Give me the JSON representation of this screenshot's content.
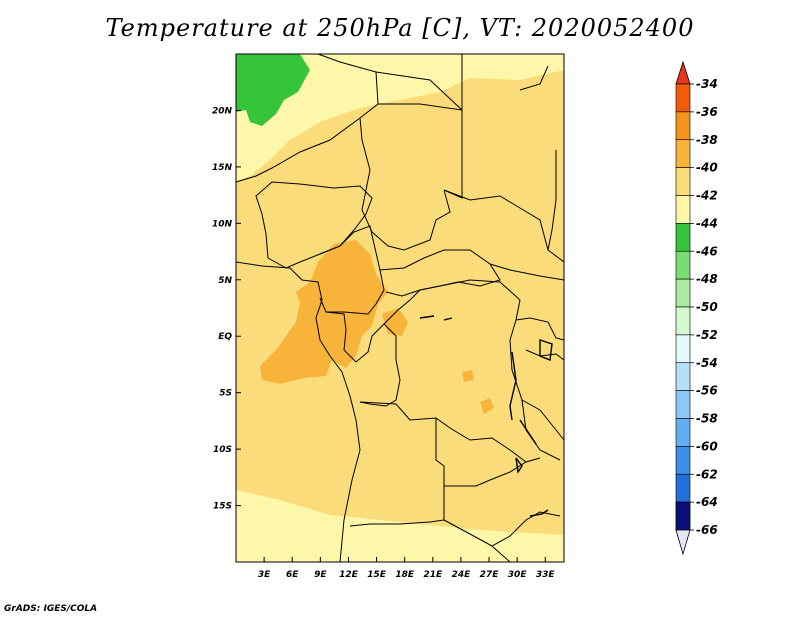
{
  "title": "Temperature at 250hPa [C], VT: 2020052400",
  "credit": "GrADS: IGES/COLA",
  "map": {
    "lon_range": [
      0,
      35
    ],
    "lat_range": [
      -20,
      25
    ],
    "lon_ticks": [
      {
        "lon": 3,
        "label": "3E"
      },
      {
        "lon": 6,
        "label": "6E"
      },
      {
        "lon": 9,
        "label": "9E"
      },
      {
        "lon": 12,
        "label": "12E"
      },
      {
        "lon": 15,
        "label": "15E"
      },
      {
        "lon": 18,
        "label": "18E"
      },
      {
        "lon": 21,
        "label": "21E"
      },
      {
        "lon": 24,
        "label": "24E"
      },
      {
        "lon": 27,
        "label": "27E"
      },
      {
        "lon": 30,
        "label": "30E"
      },
      {
        "lon": 33,
        "label": "33E"
      }
    ],
    "lat_ticks": [
      {
        "lat": 20,
        "label": "20N"
      },
      {
        "lat": 15,
        "label": "15N"
      },
      {
        "lat": 10,
        "label": "10N"
      },
      {
        "lat": 5,
        "label": "5N"
      },
      {
        "lat": 0,
        "label": "EQ"
      },
      {
        "lat": -5,
        "label": "5S"
      },
      {
        "lat": -10,
        "label": "10S"
      },
      {
        "lat": -15,
        "label": "15S"
      }
    ]
  },
  "colorbar": {
    "top_arrow_color": "#e8361e",
    "bottom_arrow_color": "#e6e6fa",
    "bins": [
      {
        "label": "-34",
        "color": "#f25a0c"
      },
      {
        "label": "-36",
        "color": "#f5941a"
      },
      {
        "label": "-38",
        "color": "#f8b43a"
      },
      {
        "label": "-40",
        "color": "#fbdc7a"
      },
      {
        "label": "-42",
        "color": "#fef7aa"
      },
      {
        "label": "-44",
        "color": "#36c53a"
      },
      {
        "label": "-46",
        "color": "#78dd72"
      },
      {
        "label": "-48",
        "color": "#a9ec9f"
      },
      {
        "label": "-50",
        "color": "#d4f8cf"
      },
      {
        "label": "-52",
        "color": "#e4f8fb"
      },
      {
        "label": "-54",
        "color": "#b5e0fa"
      },
      {
        "label": "-56",
        "color": "#8cc8f5"
      },
      {
        "label": "-58",
        "color": "#63aef0"
      },
      {
        "label": "-60",
        "color": "#3f8ee8"
      },
      {
        "label": "-62",
        "color": "#2470d9"
      },
      {
        "label": "-64",
        "color": "#1450c2"
      },
      {
        "label": "-66",
        "color": "#0c0f78"
      }
    ]
  }
}
